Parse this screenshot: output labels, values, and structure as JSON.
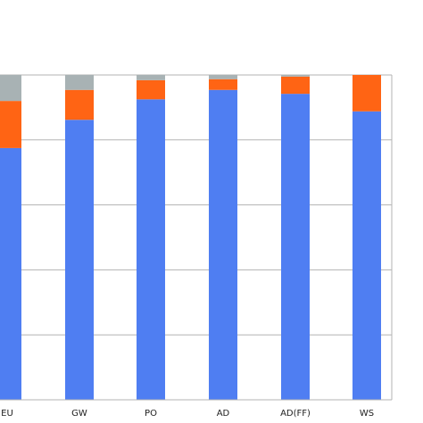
{
  "chart_data": {
    "type": "bar",
    "stacked": true,
    "categories": [
      "EU",
      "GW",
      "PO",
      "AD",
      "AD(FF)",
      "WS"
    ],
    "series": [
      {
        "color": "#4f7ef2",
        "values": [
          77.5,
          86.2,
          92.5,
          95.4,
          94.2,
          88.8
        ]
      },
      {
        "color": "#ff6414",
        "values": [
          14.5,
          9.2,
          5.9,
          3.3,
          5.3,
          11.2
        ]
      },
      {
        "color": "#a8b2b4",
        "values": [
          8.0,
          4.6,
          1.6,
          1.3,
          0.5,
          0.0
        ]
      }
    ],
    "ylim": [
      0,
      100
    ],
    "grid": true,
    "legend": "none"
  }
}
